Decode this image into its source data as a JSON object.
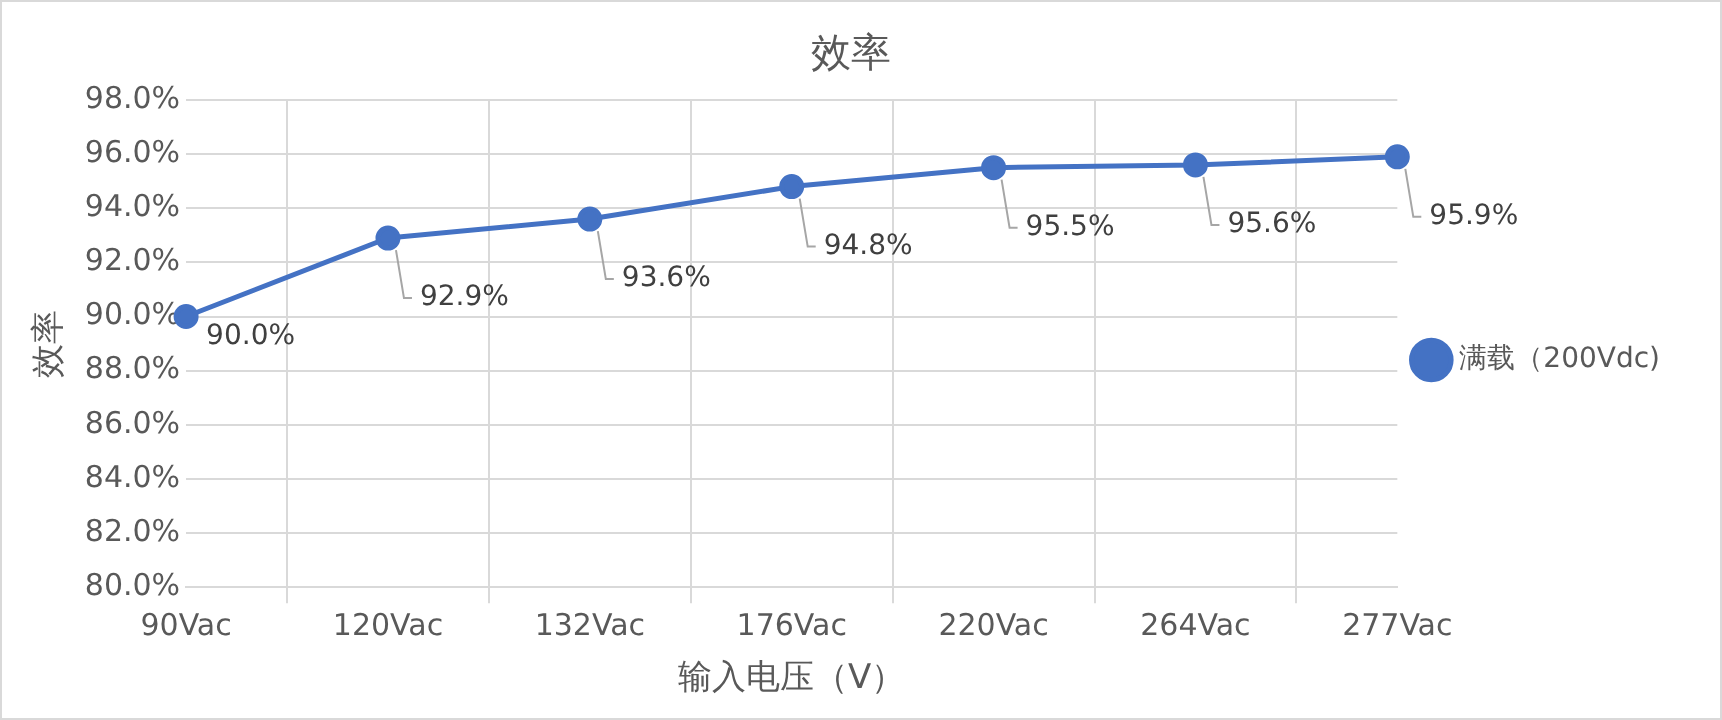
{
  "chart_data": {
    "type": "line",
    "title": "效率",
    "xlabel": "输入电压（V）",
    "ylabel": "效率",
    "categories": [
      "90Vac",
      "120Vac",
      "132Vac",
      "176Vac",
      "220Vac",
      "264Vac",
      "277Vac"
    ],
    "series": [
      {
        "name": "满载（200Vdc)",
        "color": "#4472c4",
        "values": [
          90.0,
          92.9,
          93.6,
          94.8,
          95.5,
          95.6,
          95.9
        ],
        "value_labels": [
          "90.0%",
          "92.9%",
          "93.6%",
          "94.8%",
          "95.5%",
          "95.6%",
          "95.9%"
        ]
      }
    ],
    "ylim": [
      80,
      98
    ],
    "yticks": [
      {
        "value": 80,
        "label": "80.0%"
      },
      {
        "value": 82,
        "label": "82.0%"
      },
      {
        "value": 84,
        "label": "84.0%"
      },
      {
        "value": 86,
        "label": "86.0%"
      },
      {
        "value": 88,
        "label": "88.0%"
      },
      {
        "value": 90,
        "label": "90.0%"
      },
      {
        "value": 92,
        "label": "92.0%"
      },
      {
        "value": 94,
        "label": "94.0%"
      },
      {
        "value": 96,
        "label": "96.0%"
      },
      {
        "value": 98,
        "label": "98.0%"
      }
    ],
    "grid": true,
    "legend": "right",
    "marker": "circle",
    "line_style": "solid"
  }
}
